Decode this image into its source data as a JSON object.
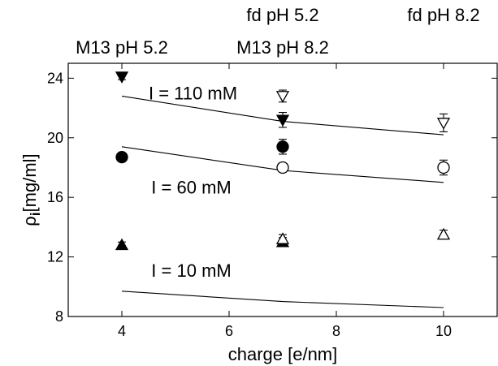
{
  "chart_data": {
    "type": "scatter",
    "title": "",
    "xlabel": "charge [e/nm]",
    "ylabel_main": "ρ",
    "ylabel_sub": "i",
    "ylabel_unit": "[mg/ml]",
    "xlim": [
      3,
      11
    ],
    "ylim": [
      8,
      25
    ],
    "xticks": [
      4,
      6,
      8,
      10
    ],
    "yticks": [
      8,
      12,
      16,
      20,
      24
    ],
    "grid": false,
    "top_labels": [
      {
        "text": "M13 pH 5.2",
        "x": 4
      },
      {
        "text": "M13 pH 8.2",
        "x": 7
      },
      {
        "text": "fd pH 5.2",
        "x": 7
      },
      {
        "text": "fd pH 8.2",
        "x": 10
      }
    ],
    "annotations": [
      {
        "text": "I = 110 mM",
        "x": 4.5,
        "y": 23.0
      },
      {
        "text": "I = 60 mM",
        "x": 4.55,
        "y": 16.7
      },
      {
        "text": "I = 10 mM",
        "x": 4.55,
        "y": 11.1
      }
    ],
    "series": [
      {
        "marker": "triangle-down",
        "fill": "filled",
        "points": [
          {
            "x": 4,
            "y": 24.1,
            "err": 0.2
          },
          {
            "x": 7,
            "y": 21.2,
            "err": 0.5
          }
        ]
      },
      {
        "marker": "triangle-down",
        "fill": "open",
        "points": [
          {
            "x": 7,
            "y": 22.8,
            "err": 0.4
          },
          {
            "x": 10,
            "y": 21.0,
            "err": 0.6
          }
        ]
      },
      {
        "marker": "circle",
        "fill": "filled",
        "points": [
          {
            "x": 4,
            "y": 18.7,
            "err": 0.2
          },
          {
            "x": 7,
            "y": 19.4,
            "err": 0.5
          }
        ]
      },
      {
        "marker": "circle",
        "fill": "open",
        "points": [
          {
            "x": 7,
            "y": 18.0,
            "err": 0.3
          },
          {
            "x": 10,
            "y": 18.0,
            "err": 0.5
          }
        ]
      },
      {
        "marker": "triangle-up",
        "fill": "filled",
        "points": [
          {
            "x": 4,
            "y": 12.8,
            "err": 0.2
          },
          {
            "x": 7,
            "y": 13.0,
            "err": 0.3
          }
        ]
      },
      {
        "marker": "triangle-up",
        "fill": "open",
        "points": [
          {
            "x": 7,
            "y": 13.2,
            "err": 0.3
          },
          {
            "x": 10,
            "y": 13.5,
            "err": 0.3
          }
        ]
      }
    ],
    "lines": [
      {
        "points": [
          {
            "x": 4,
            "y": 22.8
          },
          {
            "x": 7,
            "y": 21.1
          },
          {
            "x": 10,
            "y": 20.2
          }
        ]
      },
      {
        "points": [
          {
            "x": 4,
            "y": 19.4
          },
          {
            "x": 7,
            "y": 17.8
          },
          {
            "x": 10,
            "y": 17.0
          }
        ]
      },
      {
        "points": [
          {
            "x": 4,
            "y": 9.7
          },
          {
            "x": 7,
            "y": 9.0
          },
          {
            "x": 10,
            "y": 8.6
          }
        ]
      }
    ]
  }
}
